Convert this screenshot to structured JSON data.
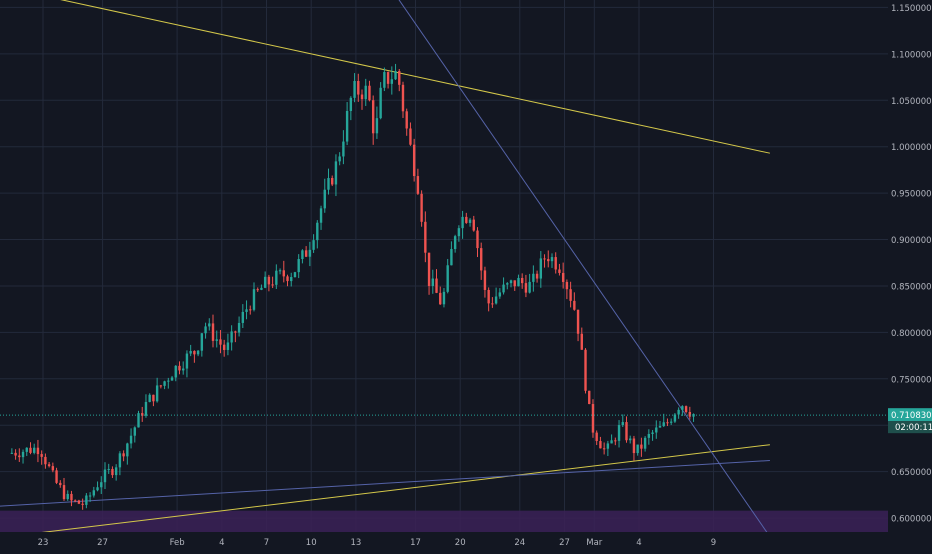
{
  "chart_data": {
    "type": "candlestick",
    "x_tick_labels": [
      "23",
      "27",
      "Feb",
      "4",
      "7",
      "10",
      "13",
      "17",
      "20",
      "24",
      "27",
      "Mar",
      "4",
      "9"
    ],
    "y_tick_labels": [
      "0.6000000",
      "0.6500000",
      "0.7000000",
      "0.7500000",
      "0.8000000",
      "0.8500000",
      "0.9000000",
      "0.9500000",
      "1.0000000",
      "1.0500000",
      "1.1000000",
      "1.1500000"
    ],
    "ylim": [
      0.585,
      1.158
    ],
    "x_range_days": [
      0,
      51
    ],
    "grid": true,
    "anchors": [
      [
        0,
        0.67
      ],
      [
        2,
        0.676
      ],
      [
        3,
        0.64
      ],
      [
        4,
        0.618
      ],
      [
        5,
        0.615
      ],
      [
        6,
        0.64
      ],
      [
        7,
        0.655
      ],
      [
        8,
        0.685
      ],
      [
        9,
        0.72
      ],
      [
        10,
        0.74
      ],
      [
        11,
        0.76
      ],
      [
        12,
        0.775
      ],
      [
        12.5,
        0.78
      ],
      [
        13,
        0.81
      ],
      [
        14.5,
        0.78
      ],
      [
        16,
        0.83
      ],
      [
        17,
        0.85
      ],
      [
        18,
        0.86
      ],
      [
        19,
        0.865
      ],
      [
        20,
        0.89
      ],
      [
        21,
        0.94
      ],
      [
        22,
        0.985
      ],
      [
        23,
        1.06
      ],
      [
        24,
        1.06
      ],
      [
        24.5,
        1.01
      ],
      [
        25,
        1.07
      ],
      [
        26,
        1.08
      ],
      [
        26.6,
        1.02
      ],
      [
        27.5,
        0.95
      ],
      [
        28,
        0.86
      ],
      [
        29,
        0.83
      ],
      [
        30,
        0.92
      ],
      [
        31,
        0.93
      ],
      [
        32,
        0.83
      ],
      [
        33,
        0.845
      ],
      [
        34,
        0.855
      ],
      [
        35,
        0.85
      ],
      [
        36,
        0.885
      ],
      [
        37,
        0.87
      ],
      [
        38,
        0.82
      ],
      [
        39,
        0.7
      ],
      [
        40,
        0.67
      ],
      [
        41,
        0.7
      ],
      [
        42,
        0.67
      ],
      [
        43,
        0.69
      ],
      [
        44,
        0.7
      ],
      [
        45,
        0.725
      ],
      [
        46,
        0.71
      ]
    ],
    "trendlines": [
      {
        "x1": -10,
        "y1": 1.205,
        "x2": 51,
        "y2": 0.993,
        "color": "#d4c84a"
      },
      {
        "x1": -10,
        "y1": 0.561,
        "x2": 51,
        "y2": 0.679,
        "color": "#d4c84a"
      },
      {
        "x1": 20,
        "y1": 1.3,
        "x2": 51,
        "y2": 0.58,
        "color": "#5563a8"
      },
      {
        "x1": -10,
        "y1": 0.604,
        "x2": 51,
        "y2": 0.662,
        "color": "#5563a8"
      }
    ],
    "zone": {
      "y_low": 0.585,
      "y_high": 0.608,
      "color": "#3b2157"
    },
    "last_price": {
      "value": 0.7108303,
      "label": "0.7108303",
      "countdown": "02:00:11"
    },
    "colors": {
      "background": "#131722",
      "grid": "#232a3b",
      "up": "#26a69a",
      "down": "#ef5350",
      "axis_text": "#b2b5be",
      "price_label": "#26a69a"
    }
  }
}
